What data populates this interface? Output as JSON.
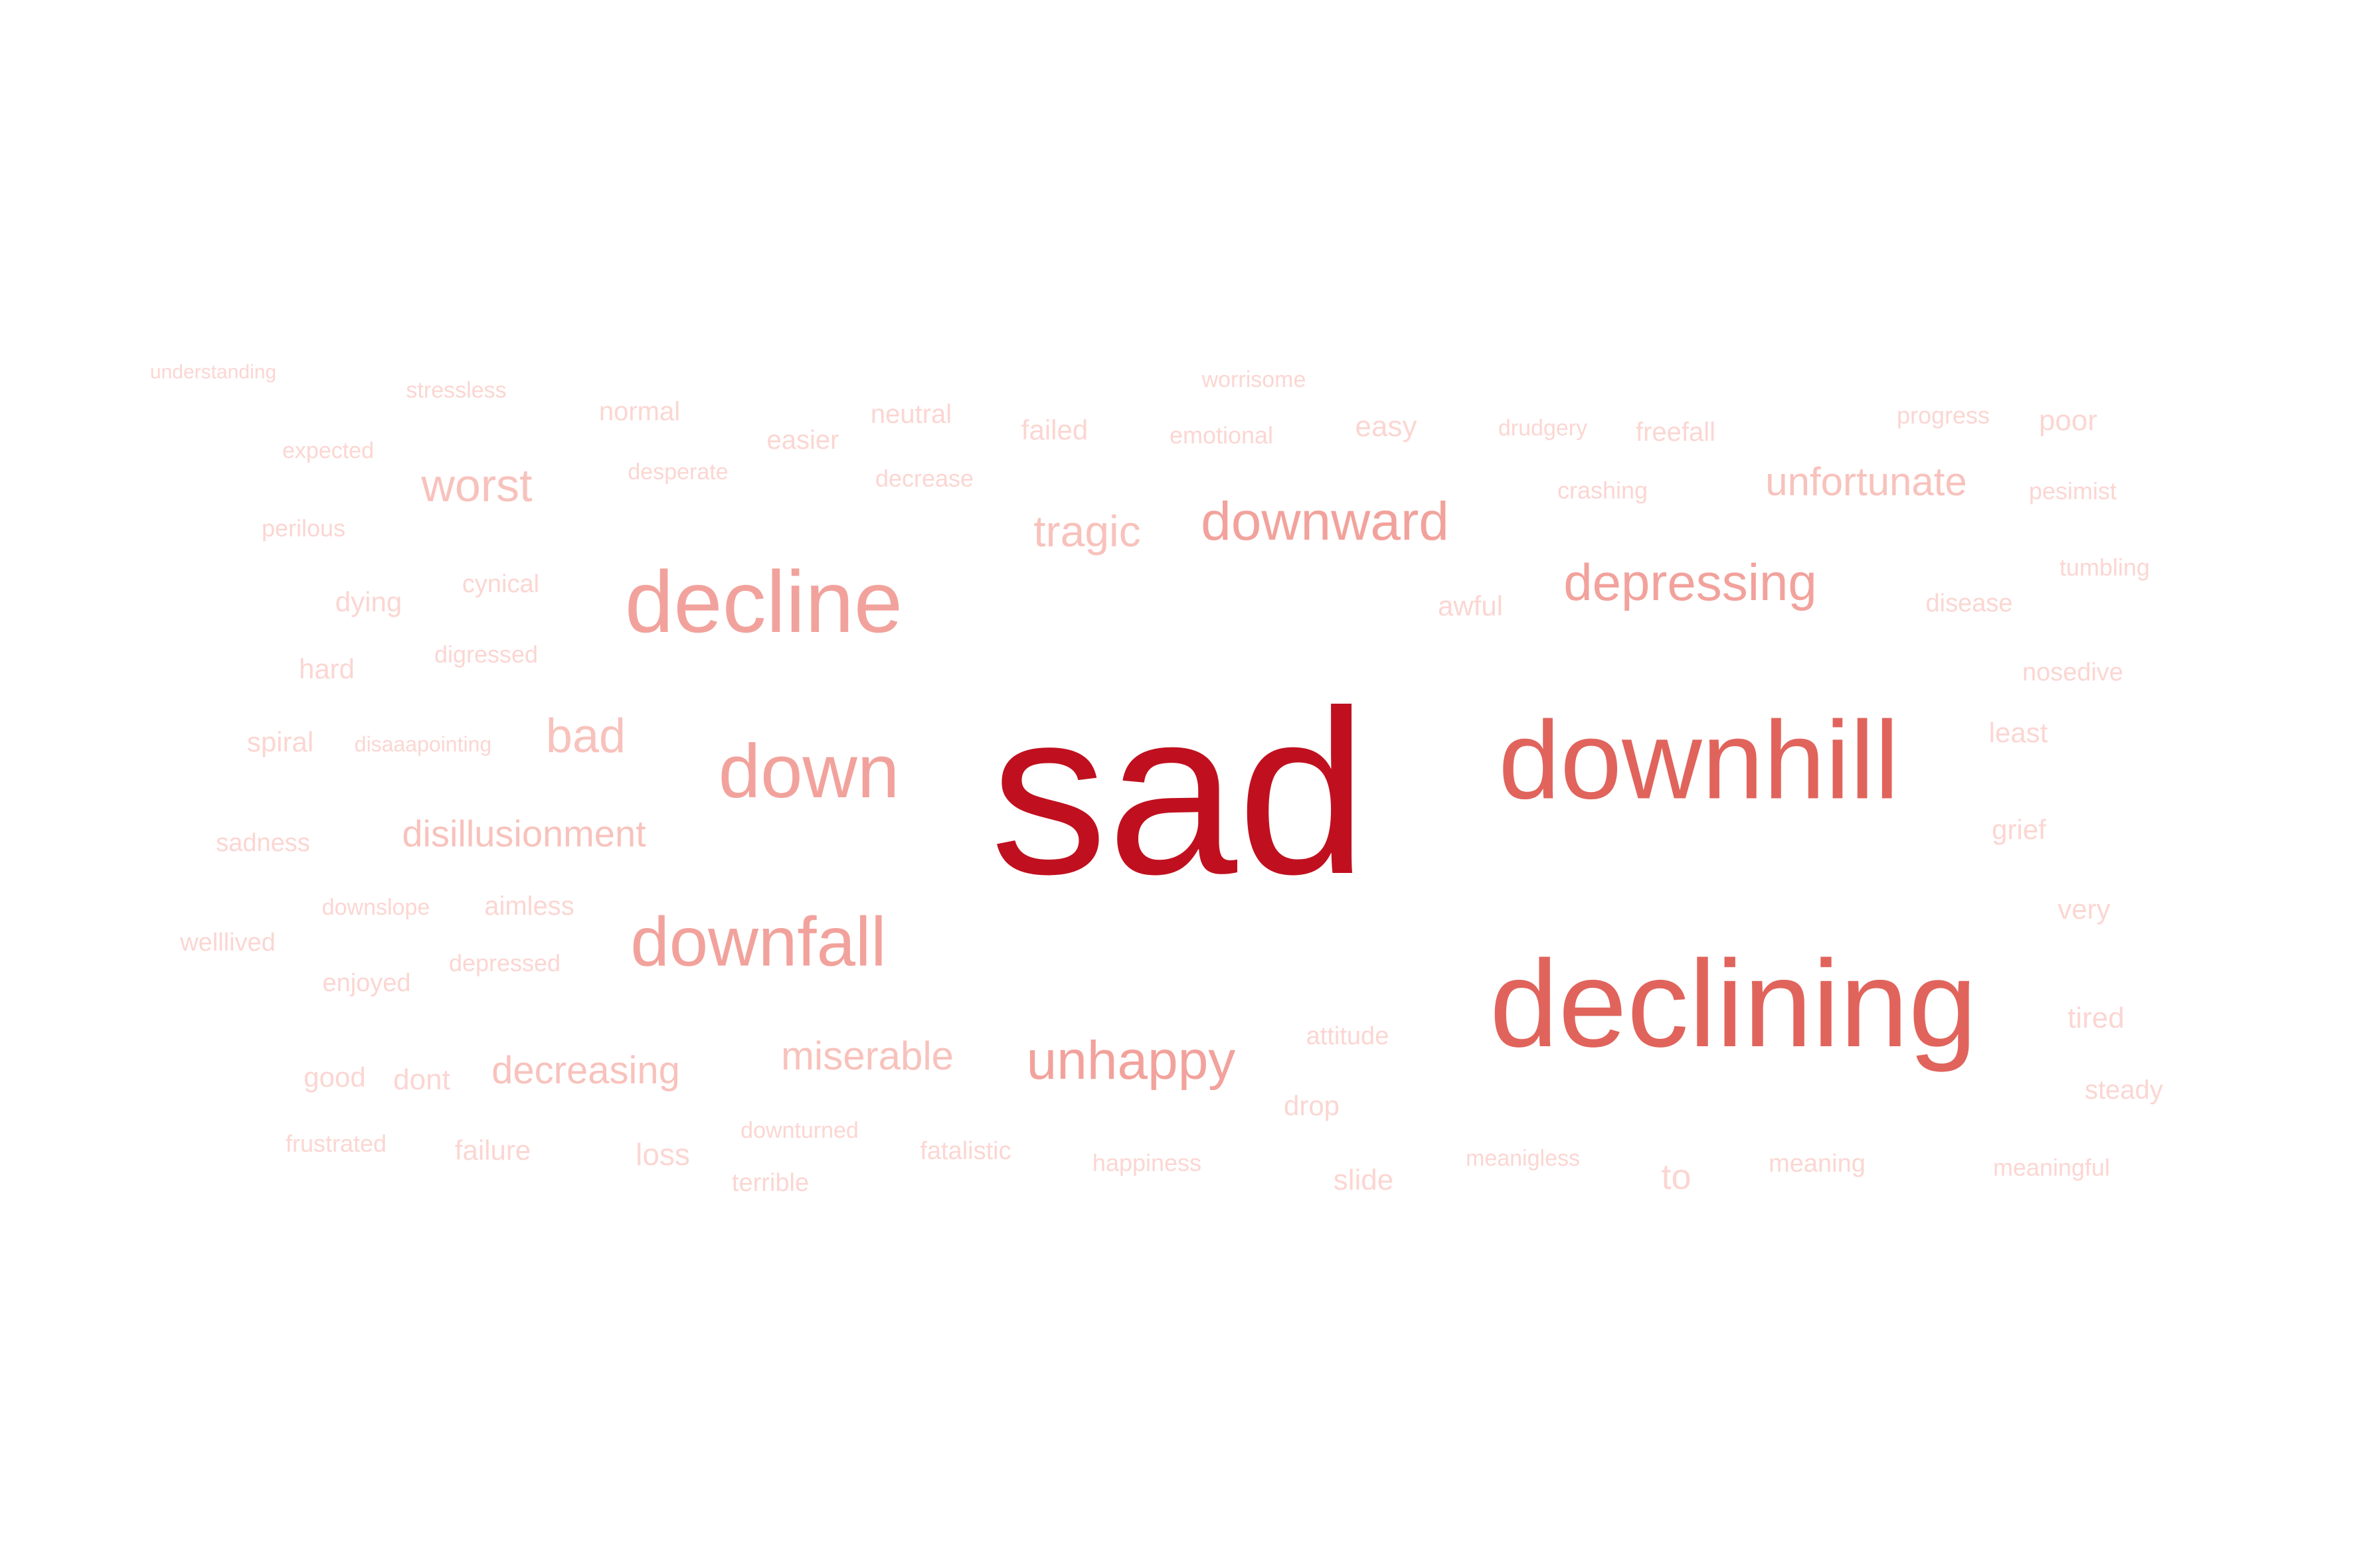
{
  "cloud": {
    "colors": {
      "darkest": "#c0101f",
      "dark": "#e0645c",
      "medium": "#f2a29c",
      "light": "#f8c2bc",
      "lightest": "#fbd6d2"
    },
    "words": [
      {
        "text": "sad",
        "tone": "darkest"
      },
      {
        "text": "downhill",
        "tone": "dark"
      },
      {
        "text": "declining",
        "tone": "dark"
      },
      {
        "text": "decline",
        "tone": "medium"
      },
      {
        "text": "down",
        "tone": "medium"
      },
      {
        "text": "downfall",
        "tone": "medium"
      },
      {
        "text": "downward",
        "tone": "medium"
      },
      {
        "text": "depressing",
        "tone": "medium"
      },
      {
        "text": "unhappy",
        "tone": "medium"
      },
      {
        "text": "tragic",
        "tone": "light"
      },
      {
        "text": "worst",
        "tone": "light"
      },
      {
        "text": "unfortunate",
        "tone": "light"
      },
      {
        "text": "bad",
        "tone": "light"
      },
      {
        "text": "disillusionment",
        "tone": "light"
      },
      {
        "text": "miserable",
        "tone": "light"
      },
      {
        "text": "decreasing",
        "tone": "light"
      },
      {
        "text": "understanding",
        "tone": "lightest"
      },
      {
        "text": "stressless",
        "tone": "lightest"
      },
      {
        "text": "normal",
        "tone": "lightest"
      },
      {
        "text": "worrisome",
        "tone": "lightest"
      },
      {
        "text": "neutral",
        "tone": "lightest"
      },
      {
        "text": "easier",
        "tone": "lightest"
      },
      {
        "text": "failed",
        "tone": "lightest"
      },
      {
        "text": "emotional",
        "tone": "lightest"
      },
      {
        "text": "easy",
        "tone": "lightest"
      },
      {
        "text": "drudgery",
        "tone": "lightest"
      },
      {
        "text": "freefall",
        "tone": "lightest"
      },
      {
        "text": "progress",
        "tone": "lightest"
      },
      {
        "text": "poor",
        "tone": "lightest"
      },
      {
        "text": "expected",
        "tone": "lightest"
      },
      {
        "text": "desperate",
        "tone": "lightest"
      },
      {
        "text": "decrease",
        "tone": "lightest"
      },
      {
        "text": "crashing",
        "tone": "lightest"
      },
      {
        "text": "pesimist",
        "tone": "lightest"
      },
      {
        "text": "perilous",
        "tone": "lightest"
      },
      {
        "text": "tumbling",
        "tone": "lightest"
      },
      {
        "text": "dying",
        "tone": "lightest"
      },
      {
        "text": "cynical",
        "tone": "lightest"
      },
      {
        "text": "awful",
        "tone": "lightest"
      },
      {
        "text": "disease",
        "tone": "lightest"
      },
      {
        "text": "hard",
        "tone": "lightest"
      },
      {
        "text": "digressed",
        "tone": "lightest"
      },
      {
        "text": "nosedive",
        "tone": "lightest"
      },
      {
        "text": "spiral",
        "tone": "lightest"
      },
      {
        "text": "disaaapointing",
        "tone": "lightest"
      },
      {
        "text": "least",
        "tone": "lightest"
      },
      {
        "text": "sadness",
        "tone": "lightest"
      },
      {
        "text": "grief",
        "tone": "lightest"
      },
      {
        "text": "downslope",
        "tone": "lightest"
      },
      {
        "text": "aimless",
        "tone": "lightest"
      },
      {
        "text": "very",
        "tone": "lightest"
      },
      {
        "text": "welllived",
        "tone": "lightest"
      },
      {
        "text": "depressed",
        "tone": "lightest"
      },
      {
        "text": "enjoyed",
        "tone": "lightest"
      },
      {
        "text": "tired",
        "tone": "lightest"
      },
      {
        "text": "attitude",
        "tone": "lightest"
      },
      {
        "text": "good",
        "tone": "lightest"
      },
      {
        "text": "dont",
        "tone": "lightest"
      },
      {
        "text": "steady",
        "tone": "lightest"
      },
      {
        "text": "drop",
        "tone": "lightest"
      },
      {
        "text": "downturned",
        "tone": "lightest"
      },
      {
        "text": "frustrated",
        "tone": "lightest"
      },
      {
        "text": "failure",
        "tone": "lightest"
      },
      {
        "text": "loss",
        "tone": "lightest"
      },
      {
        "text": "fatalistic",
        "tone": "lightest"
      },
      {
        "text": "happiness",
        "tone": "lightest"
      },
      {
        "text": "meanigless",
        "tone": "lightest"
      },
      {
        "text": "to",
        "tone": "lightest"
      },
      {
        "text": "meaning",
        "tone": "lightest"
      },
      {
        "text": "meaningful",
        "tone": "lightest"
      },
      {
        "text": "terrible",
        "tone": "lightest"
      },
      {
        "text": "slide",
        "tone": "lightest"
      }
    ]
  }
}
